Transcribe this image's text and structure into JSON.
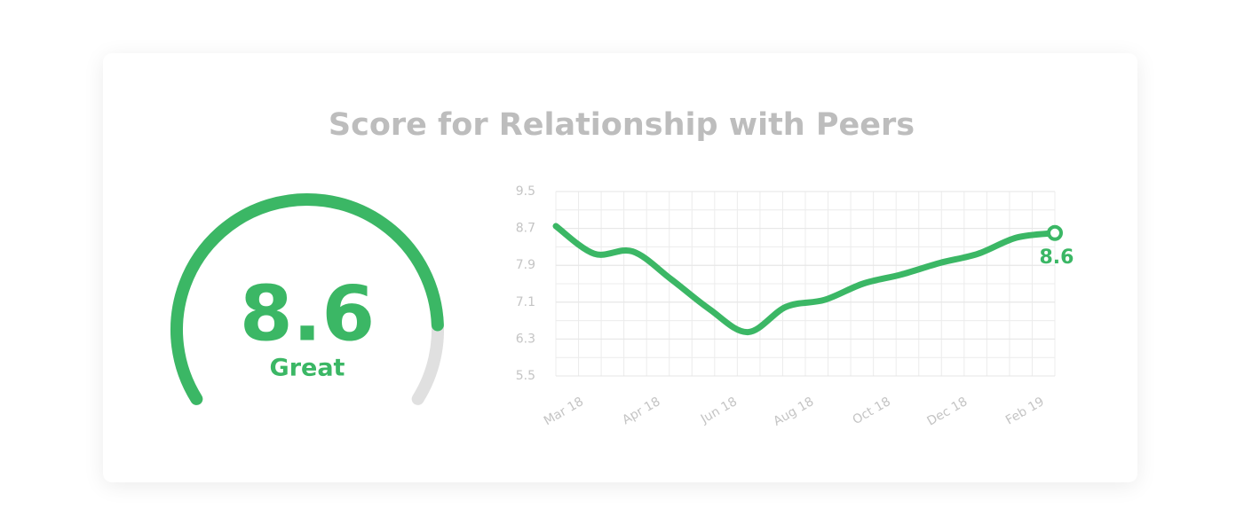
{
  "title": "Score for Relationship with Peers",
  "chart_data": [
    {
      "type": "gauge",
      "value": 8.6,
      "label": "Great",
      "range": [
        0,
        10
      ],
      "color": "#3bb765",
      "track_color": "#e0e0e0"
    },
    {
      "type": "line",
      "categories": [
        "Mar 18",
        null,
        "Apr 18",
        null,
        "Jun 18",
        null,
        "Aug 18",
        null,
        "Oct 18",
        null,
        "Dec 18",
        null,
        "Feb 19",
        null
      ],
      "values": [
        8.75,
        8.15,
        8.2,
        7.6,
        6.95,
        6.45,
        7.0,
        7.15,
        7.5,
        7.7,
        7.95,
        8.15,
        8.5,
        8.6
      ],
      "color": "#3bb765",
      "ylim": [
        5.5,
        9.5
      ],
      "yticks": [
        5.5,
        6.3,
        7.1,
        7.9,
        8.7,
        9.5
      ],
      "grid": true,
      "label_last": true
    }
  ]
}
